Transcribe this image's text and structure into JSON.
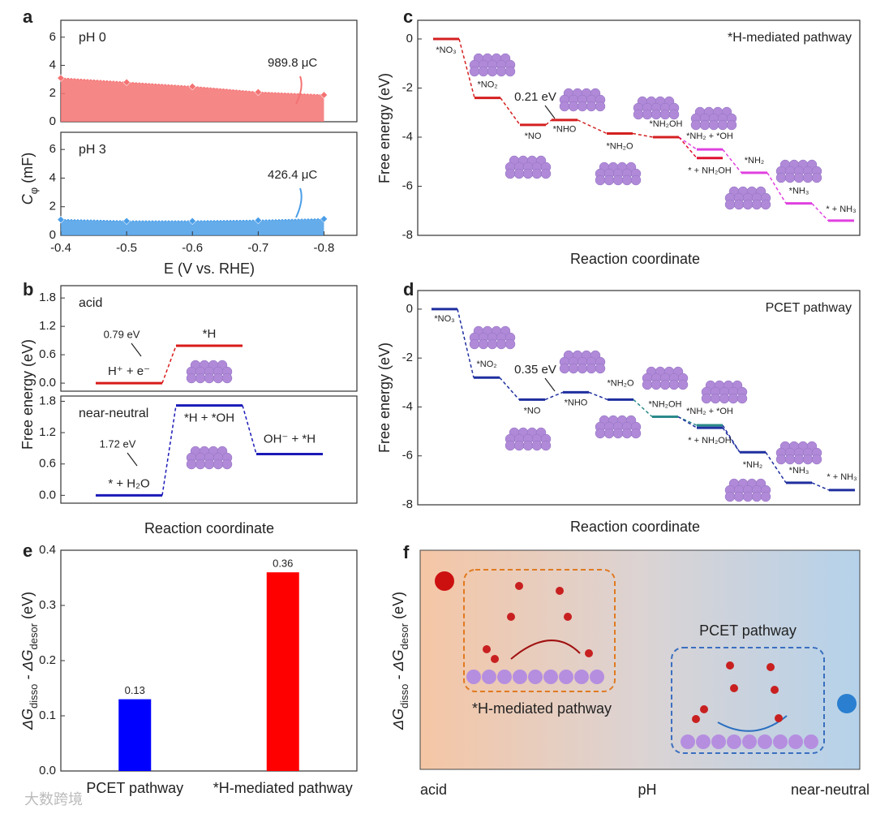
{
  "chart_data": [
    {
      "type": "area",
      "panel": "a",
      "subtitle": "pH 0",
      "x": [
        -0.4,
        -0.5,
        -0.6,
        -0.7,
        -0.8
      ],
      "values": [
        3.1,
        2.8,
        2.5,
        2.1,
        1.9
      ],
      "color": "#f47272",
      "annotation": "989.8 μC",
      "xlim": [
        -0.4,
        -0.85
      ],
      "ylim": [
        0,
        7.2
      ],
      "yticks": [
        0,
        2,
        4,
        6
      ],
      "ylabel": [
        "C",
        "φ",
        " (mF)"
      ]
    },
    {
      "type": "area",
      "subtitle": "pH 3",
      "x": [
        -0.4,
        -0.5,
        -0.6,
        -0.7,
        -0.8
      ],
      "values": [
        1.1,
        1.0,
        1.0,
        1.05,
        1.15
      ],
      "color": "#4a9ee8",
      "annotation": "426.4 μC",
      "xlim": [
        -0.4,
        -0.85
      ],
      "ylim": [
        0,
        7.2
      ],
      "yticks": [
        0,
        2,
        4,
        6
      ],
      "xticks": [
        -0.4,
        -0.5,
        -0.6,
        -0.7,
        -0.8
      ],
      "xlabel": "E (V vs. RHE)"
    },
    {
      "type": "energy",
      "panel": "b",
      "subtitle": "acid",
      "categories": [
        "H⁺ + e⁻",
        "*H"
      ],
      "values": [
        0,
        0.79
      ],
      "color": "#d91a1a",
      "annotation": "0.79 eV",
      "ylim": [
        -0.17,
        2.06
      ],
      "yticks": [
        {
          "value": 0,
          "label": "0.0"
        },
        0.6,
        1.2,
        1.8
      ]
    },
    {
      "type": "energy",
      "subtitle": "near-neutral",
      "categories": [
        "* + H₂O",
        "*H + *OH",
        "OH⁻ + *H"
      ],
      "values": [
        0,
        1.72,
        0.79
      ],
      "color": "#1a1ab8",
      "annotation": "1.72 eV",
      "ylim": [
        -0.15,
        1.9
      ],
      "yticks": [
        {
          "value": 0,
          "label": "0.0"
        },
        0.6,
        1.2,
        1.8
      ],
      "ylabel": "Free energy (eV)",
      "xlabel": "Reaction coordinate"
    },
    {
      "type": "energy",
      "panel": "c",
      "title": "*H-mediated pathway",
      "categories": [
        "*NO₃",
        "*NO₂",
        "*NO",
        "*NHO",
        "*NH₂O",
        "*NH₂OH",
        "*NH₂ + *OH",
        "* + NH₂OH",
        "*NH₂",
        "*NH₃",
        "* + NH₃"
      ],
      "values": [
        0,
        -2.4,
        -3.5,
        -3.3,
        -3.85,
        -4.0,
        -4.5,
        -4.85,
        -5.45,
        -6.7,
        -7.4
      ],
      "colors": [
        "#d42020",
        "#d42020",
        "#d42020",
        "#d42020",
        "#d42020",
        "#d42020",
        "#e040e0",
        "#e01030",
        "#e040e0",
        "#e040e0",
        "#e040e0"
      ],
      "annotation": "0.21 eV",
      "ylim": [
        -8,
        0.76
      ],
      "yticks": [
        0,
        -2,
        -4,
        -6,
        -8
      ],
      "ylabel": "Free energy (eV)",
      "xlabel": "Reaction coordinate"
    },
    {
      "type": "energy",
      "panel": "d",
      "title": "PCET pathway",
      "categories": [
        "*NO₃",
        "*NO₂",
        "*NO",
        "*NHO",
        "*NH₂O",
        "*NH₂OH",
        "*NH₂ + *OH",
        "* + NH₂OH",
        "*NH₂",
        "*NH₃",
        "* + NH₃"
      ],
      "values": [
        0,
        -2.8,
        -3.7,
        -3.4,
        -3.7,
        -4.4,
        -4.75,
        -4.85,
        -5.85,
        -7.1,
        -7.4
      ],
      "colors": [
        "#1f2f9f",
        "#1f2f9f",
        "#1f2f9f",
        "#1f2f9f",
        "#1f2f9f",
        "#2a8a8a",
        "#2a8a8a",
        "#1f2f9f",
        "#1f2f9f",
        "#1f2f9f",
        "#1f2f9f"
      ],
      "annotation": "0.35 eV",
      "ylim": [
        -8,
        0.76
      ],
      "yticks": [
        0,
        -2,
        -4,
        -6,
        -8
      ],
      "ylabel": "Free energy (eV)",
      "xlabel": "Reaction coordinate"
    },
    {
      "type": "bar",
      "panel": "e",
      "categories": [
        "PCET pathway",
        "*H-mediated pathway"
      ],
      "values": [
        0.13,
        0.36
      ],
      "colors": [
        "#0000ff",
        "#ff0000"
      ],
      "ylim": [
        0,
        0.4
      ],
      "yticks": [
        {
          "value": 0,
          "label": "0.0"
        },
        0.1,
        0.2,
        0.3,
        0.4
      ],
      "ylabel": [
        "ΔG",
        "disso",
        " - ΔG",
        "desor",
        " (eV)"
      ]
    }
  ],
  "schematic": {
    "panel": "f",
    "ylabel": [
      "ΔG",
      "disso",
      " - ΔG",
      "desor",
      " (eV)"
    ],
    "left_box": "*H-mediated pathway",
    "right_box": "PCET pathway",
    "axis": [
      "acid",
      "pH",
      "near-neutral"
    ]
  },
  "watermark": "大数跨境"
}
